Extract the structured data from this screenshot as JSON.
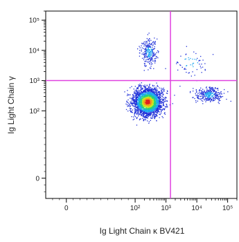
{
  "chart_data": {
    "type": "scatter",
    "style": "flow-cytometry density dot plot",
    "xlabel": "Ig Light Chain κ BV421",
    "ylabel": "Ig Light Chain γ",
    "x_scale": "biexponential",
    "y_scale": "biexponential",
    "x_tick_labels": [
      "0",
      "10²",
      "10³",
      "10⁴",
      "10⁵"
    ],
    "x_tick_values": [
      0,
      100,
      1000,
      10000,
      100000
    ],
    "y_tick_labels": [
      "0",
      "10²",
      "10³",
      "10⁴",
      "10⁵"
    ],
    "y_tick_values": [
      0,
      100,
      1000,
      10000,
      100000
    ],
    "xlim": [
      -30,
      200000
    ],
    "ylim": [
      -30,
      200000
    ],
    "grid": false,
    "legend": "none",
    "quadrant_gate": {
      "x": 1400,
      "y": 1000,
      "color": "#e040e0"
    },
    "density_colors": [
      "#1e2fd8",
      "#1fa8f0",
      "#26d080",
      "#c8e81e",
      "#f0a020",
      "#e02020"
    ],
    "populations": [
      {
        "region": "lower-left",
        "x_center": 250,
        "y_center": 200,
        "relative_density": 1.0
      },
      {
        "region": "lower-right",
        "x_center": 25000,
        "y_center": 350,
        "relative_density": 0.12
      },
      {
        "region": "upper-left",
        "x_center": 280,
        "y_center": 9000,
        "relative_density": 0.1
      },
      {
        "region": "upper-right",
        "x_center": 6000,
        "y_center": 4000,
        "relative_density": 0.02
      }
    ]
  }
}
